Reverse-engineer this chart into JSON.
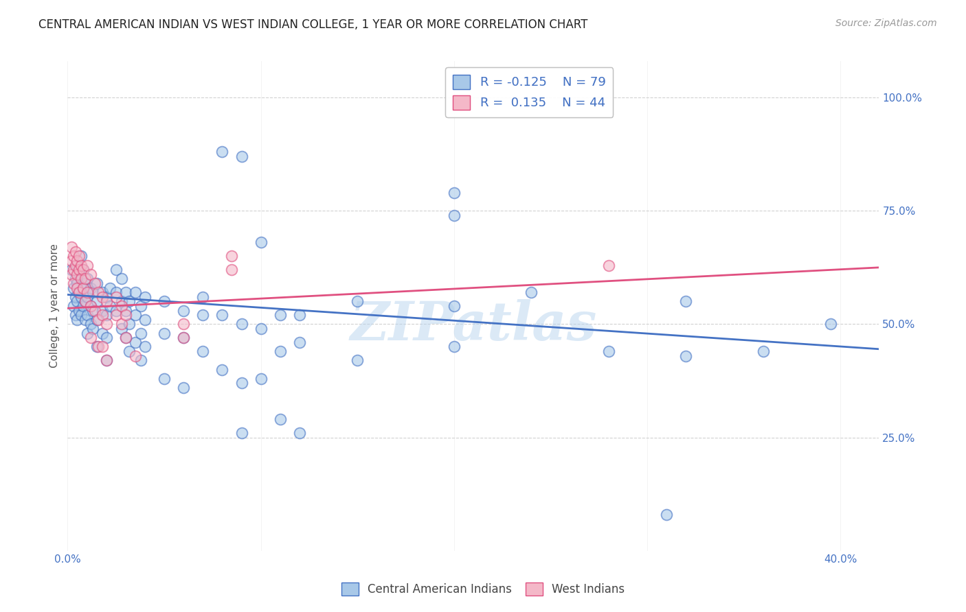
{
  "title": "CENTRAL AMERICAN INDIAN VS WEST INDIAN COLLEGE, 1 YEAR OR MORE CORRELATION CHART",
  "source": "Source: ZipAtlas.com",
  "ylabel": "College, 1 year or more",
  "xlim": [
    0.0,
    0.42
  ],
  "ylim": [
    0.0,
    1.08
  ],
  "yticks": [
    0.25,
    0.5,
    0.75,
    1.0
  ],
  "ytick_labels": [
    "25.0%",
    "50.0%",
    "75.0%",
    "100.0%"
  ],
  "color_blue": "#a8c8e8",
  "color_pink": "#f4b8c8",
  "line_blue": "#4472c4",
  "line_pink": "#e05080",
  "watermark": "ZIPatlas",
  "blue_scatter": [
    [
      0.002,
      0.62
    ],
    [
      0.003,
      0.58
    ],
    [
      0.003,
      0.54
    ],
    [
      0.004,
      0.6
    ],
    [
      0.004,
      0.56
    ],
    [
      0.004,
      0.52
    ],
    [
      0.005,
      0.63
    ],
    [
      0.005,
      0.59
    ],
    [
      0.005,
      0.55
    ],
    [
      0.005,
      0.51
    ],
    [
      0.006,
      0.61
    ],
    [
      0.006,
      0.57
    ],
    [
      0.006,
      0.53
    ],
    [
      0.007,
      0.65
    ],
    [
      0.007,
      0.6
    ],
    [
      0.007,
      0.56
    ],
    [
      0.007,
      0.52
    ],
    [
      0.008,
      0.62
    ],
    [
      0.008,
      0.58
    ],
    [
      0.008,
      0.54
    ],
    [
      0.009,
      0.59
    ],
    [
      0.009,
      0.55
    ],
    [
      0.009,
      0.51
    ],
    [
      0.01,
      0.6
    ],
    [
      0.01,
      0.56
    ],
    [
      0.01,
      0.52
    ],
    [
      0.01,
      0.48
    ],
    [
      0.012,
      0.58
    ],
    [
      0.012,
      0.54
    ],
    [
      0.012,
      0.5
    ],
    [
      0.013,
      0.57
    ],
    [
      0.013,
      0.53
    ],
    [
      0.013,
      0.49
    ],
    [
      0.015,
      0.59
    ],
    [
      0.015,
      0.55
    ],
    [
      0.015,
      0.51
    ],
    [
      0.015,
      0.45
    ],
    [
      0.018,
      0.57
    ],
    [
      0.018,
      0.53
    ],
    [
      0.018,
      0.48
    ],
    [
      0.02,
      0.56
    ],
    [
      0.02,
      0.52
    ],
    [
      0.02,
      0.47
    ],
    [
      0.02,
      0.42
    ],
    [
      0.022,
      0.58
    ],
    [
      0.022,
      0.54
    ],
    [
      0.025,
      0.62
    ],
    [
      0.025,
      0.57
    ],
    [
      0.025,
      0.53
    ],
    [
      0.028,
      0.6
    ],
    [
      0.028,
      0.55
    ],
    [
      0.028,
      0.49
    ],
    [
      0.03,
      0.57
    ],
    [
      0.03,
      0.53
    ],
    [
      0.03,
      0.47
    ],
    [
      0.032,
      0.55
    ],
    [
      0.032,
      0.5
    ],
    [
      0.032,
      0.44
    ],
    [
      0.035,
      0.57
    ],
    [
      0.035,
      0.52
    ],
    [
      0.035,
      0.46
    ],
    [
      0.038,
      0.54
    ],
    [
      0.038,
      0.48
    ],
    [
      0.038,
      0.42
    ],
    [
      0.04,
      0.56
    ],
    [
      0.04,
      0.51
    ],
    [
      0.04,
      0.45
    ],
    [
      0.05,
      0.55
    ],
    [
      0.05,
      0.48
    ],
    [
      0.05,
      0.38
    ],
    [
      0.06,
      0.53
    ],
    [
      0.06,
      0.47
    ],
    [
      0.06,
      0.36
    ],
    [
      0.07,
      0.56
    ],
    [
      0.07,
      0.52
    ],
    [
      0.07,
      0.44
    ],
    [
      0.08,
      0.88
    ],
    [
      0.08,
      0.52
    ],
    [
      0.08,
      0.4
    ],
    [
      0.09,
      0.87
    ],
    [
      0.09,
      0.5
    ],
    [
      0.09,
      0.37
    ],
    [
      0.09,
      0.26
    ],
    [
      0.1,
      0.68
    ],
    [
      0.1,
      0.49
    ],
    [
      0.1,
      0.38
    ],
    [
      0.11,
      0.52
    ],
    [
      0.11,
      0.44
    ],
    [
      0.11,
      0.29
    ],
    [
      0.12,
      0.52
    ],
    [
      0.12,
      0.46
    ],
    [
      0.12,
      0.26
    ],
    [
      0.15,
      0.55
    ],
    [
      0.15,
      0.42
    ],
    [
      0.2,
      0.79
    ],
    [
      0.2,
      0.74
    ],
    [
      0.2,
      0.54
    ],
    [
      0.2,
      0.45
    ],
    [
      0.24,
      0.57
    ],
    [
      0.28,
      0.44
    ],
    [
      0.32,
      0.55
    ],
    [
      0.32,
      0.43
    ],
    [
      0.36,
      0.44
    ],
    [
      0.395,
      0.5
    ],
    [
      0.31,
      0.08
    ]
  ],
  "pink_scatter": [
    [
      0.002,
      0.67
    ],
    [
      0.002,
      0.64
    ],
    [
      0.002,
      0.61
    ],
    [
      0.003,
      0.65
    ],
    [
      0.003,
      0.62
    ],
    [
      0.003,
      0.59
    ],
    [
      0.004,
      0.66
    ],
    [
      0.004,
      0.63
    ],
    [
      0.005,
      0.64
    ],
    [
      0.005,
      0.61
    ],
    [
      0.005,
      0.58
    ],
    [
      0.006,
      0.65
    ],
    [
      0.006,
      0.62
    ],
    [
      0.006,
      0.57
    ],
    [
      0.007,
      0.63
    ],
    [
      0.007,
      0.6
    ],
    [
      0.008,
      0.62
    ],
    [
      0.008,
      0.58
    ],
    [
      0.009,
      0.6
    ],
    [
      0.009,
      0.55
    ],
    [
      0.01,
      0.63
    ],
    [
      0.01,
      0.57
    ],
    [
      0.012,
      0.61
    ],
    [
      0.012,
      0.54
    ],
    [
      0.012,
      0.47
    ],
    [
      0.014,
      0.59
    ],
    [
      0.014,
      0.53
    ],
    [
      0.016,
      0.57
    ],
    [
      0.016,
      0.51
    ],
    [
      0.016,
      0.45
    ],
    [
      0.018,
      0.56
    ],
    [
      0.018,
      0.52
    ],
    [
      0.018,
      0.45
    ],
    [
      0.02,
      0.55
    ],
    [
      0.02,
      0.5
    ],
    [
      0.02,
      0.42
    ],
    [
      0.025,
      0.56
    ],
    [
      0.025,
      0.52
    ],
    [
      0.028,
      0.54
    ],
    [
      0.028,
      0.5
    ],
    [
      0.03,
      0.52
    ],
    [
      0.03,
      0.47
    ],
    [
      0.035,
      0.43
    ],
    [
      0.06,
      0.5
    ],
    [
      0.06,
      0.47
    ],
    [
      0.085,
      0.65
    ],
    [
      0.085,
      0.62
    ],
    [
      0.28,
      0.63
    ]
  ],
  "blue_line_x": [
    0.0,
    0.42
  ],
  "blue_line_y": [
    0.565,
    0.445
  ],
  "pink_line_x": [
    0.0,
    0.42
  ],
  "pink_line_y": [
    0.535,
    0.625
  ],
  "title_fontsize": 12,
  "source_fontsize": 10,
  "label_fontsize": 11,
  "tick_fontsize": 11,
  "legend_fontsize": 13
}
